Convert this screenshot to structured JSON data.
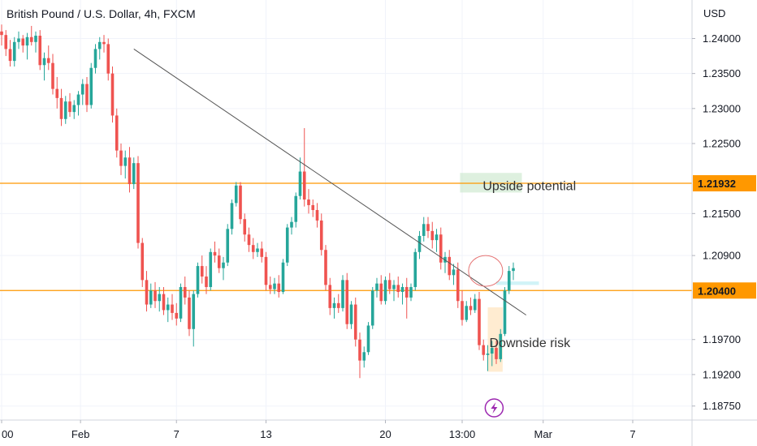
{
  "chart_title": "British Pound / U.S. Dollar, 4h, FXCM",
  "currency_label": "USD",
  "colors": {
    "up": "#26a69a",
    "down": "#ef5350",
    "level": "#ff9800",
    "badge_bg": "#ff9800",
    "grid": "#f0f3fa",
    "trendline": "#555555",
    "upside_box": "#c8e6c9",
    "downside_box": "#ffe0b2",
    "target_box": "#b2ebf2",
    "circle": "#e57373",
    "flash_icon": "#9c27b0"
  },
  "chart_data": {
    "type": "candlestick",
    "title": "British Pound / U.S. Dollar, 4h, FXCM",
    "y_axis_label": "USD",
    "ylim": [
      1.1855,
      1.2455
    ],
    "y_ticks": [
      "1.18750",
      "1.19200",
      "1.19700",
      "1.20400",
      "1.20900",
      "1.21500",
      "1.21932",
      "1.22500",
      "1.23000",
      "1.23500",
      "1.24000"
    ],
    "x_ticks": [
      {
        "label": "00",
        "idx": 0
      },
      {
        "label": "Feb",
        "idx": 18.5
      },
      {
        "label": "7",
        "idx": 41
      },
      {
        "label": "13",
        "idx": 62
      },
      {
        "label": "20",
        "idx": 90
      },
      {
        "label": "13:00",
        "idx": 108
      },
      {
        "label": "Mar",
        "idx": 127
      },
      {
        "label": "7",
        "idx": 148
      }
    ],
    "ohlc": [
      [
        1.241,
        1.242,
        1.239,
        1.2405
      ],
      [
        1.2405,
        1.2412,
        1.2375,
        1.2385
      ],
      [
        1.2385,
        1.2398,
        1.236,
        1.2368
      ],
      [
        1.2368,
        1.2402,
        1.236,
        1.2395
      ],
      [
        1.2395,
        1.241,
        1.2385,
        1.24
      ],
      [
        1.24,
        1.2405,
        1.238,
        1.239
      ],
      [
        1.239,
        1.2408,
        1.237,
        1.2402
      ],
      [
        1.2402,
        1.2418,
        1.239,
        1.2395
      ],
      [
        1.2395,
        1.241,
        1.238,
        1.2404
      ],
      [
        1.2404,
        1.2412,
        1.2355,
        1.2362
      ],
      [
        1.2362,
        1.238,
        1.234,
        1.2372
      ],
      [
        1.2372,
        1.239,
        1.2355,
        1.2365
      ],
      [
        1.2365,
        1.2378,
        1.232,
        1.2328
      ],
      [
        1.2328,
        1.2345,
        1.23,
        1.2315
      ],
      [
        1.2315,
        1.2328,
        1.2275,
        1.2285
      ],
      [
        1.2285,
        1.2318,
        1.2278,
        1.231
      ],
      [
        1.231,
        1.2322,
        1.2288,
        1.2295
      ],
      [
        1.2295,
        1.2312,
        1.2285,
        1.2305
      ],
      [
        1.2305,
        1.2325,
        1.229,
        1.232
      ],
      [
        1.232,
        1.2342,
        1.2305,
        1.2335
      ],
      [
        1.2335,
        1.2345,
        1.2295,
        1.2305
      ],
      [
        1.2305,
        1.2365,
        1.23,
        1.2358
      ],
      [
        1.2358,
        1.2392,
        1.235,
        1.2385
      ],
      [
        1.2385,
        1.2402,
        1.237,
        1.2395
      ],
      [
        1.2395,
        1.2405,
        1.238,
        1.2392
      ],
      [
        1.2392,
        1.24,
        1.234,
        1.235
      ],
      [
        1.235,
        1.236,
        1.228,
        1.229
      ],
      [
        1.229,
        1.23,
        1.223,
        1.224
      ],
      [
        1.224,
        1.225,
        1.2205,
        1.2218
      ],
      [
        1.2218,
        1.224,
        1.22,
        1.223
      ],
      [
        1.223,
        1.2245,
        1.218,
        1.2192
      ],
      [
        1.2192,
        1.223,
        1.2185,
        1.2222
      ],
      [
        1.2222,
        1.2232,
        1.21,
        1.2108
      ],
      [
        1.2108,
        1.2115,
        1.2045,
        1.2055
      ],
      [
        1.2055,
        1.2068,
        1.201,
        1.202
      ],
      [
        1.202,
        1.205,
        1.2015,
        1.204
      ],
      [
        1.204,
        1.2052,
        1.2015,
        1.2025
      ],
      [
        1.2025,
        1.2045,
        1.201,
        1.2035
      ],
      [
        1.2035,
        1.2045,
        1.2005,
        1.2012
      ],
      [
        1.2012,
        1.203,
        1.1995,
        1.202
      ],
      [
        1.202,
        1.2035,
        1.1998,
        1.2008
      ],
      [
        1.2008,
        1.2022,
        1.199,
        1.2
      ],
      [
        1.2,
        1.205,
        1.1995,
        1.2045
      ],
      [
        1.2045,
        1.206,
        1.202,
        1.203
      ],
      [
        1.203,
        1.204,
        1.1975,
        1.1985
      ],
      [
        1.1985,
        1.204,
        1.196,
        1.2035
      ],
      [
        1.2035,
        1.208,
        1.203,
        1.2075
      ],
      [
        1.2075,
        1.209,
        1.205,
        1.206
      ],
      [
        1.206,
        1.2075,
        1.2035,
        1.2045
      ],
      [
        1.2045,
        1.21,
        1.204,
        1.2095
      ],
      [
        1.2095,
        1.211,
        1.208,
        1.209
      ],
      [
        1.209,
        1.21,
        1.2065,
        1.2072
      ],
      [
        1.2072,
        1.2088,
        1.2055,
        1.208
      ],
      [
        1.208,
        1.2135,
        1.2075,
        1.2128
      ],
      [
        1.2128,
        1.217,
        1.212,
        1.2165
      ],
      [
        1.2165,
        1.2195,
        1.216,
        1.219
      ],
      [
        1.219,
        1.2195,
        1.2135,
        1.2142
      ],
      [
        1.2142,
        1.215,
        1.211,
        1.212
      ],
      [
        1.212,
        1.213,
        1.2095,
        1.2105
      ],
      [
        1.2105,
        1.2115,
        1.2085,
        1.2095
      ],
      [
        1.2095,
        1.2108,
        1.2088,
        1.21
      ],
      [
        1.21,
        1.211,
        1.208,
        1.2088
      ],
      [
        1.2088,
        1.2095,
        1.204,
        1.2048
      ],
      [
        1.2048,
        1.206,
        1.2035,
        1.2042
      ],
      [
        1.2042,
        1.2058,
        1.2035,
        1.205
      ],
      [
        1.205,
        1.2062,
        1.203,
        1.2038
      ],
      [
        1.2038,
        1.2085,
        1.2035,
        1.208
      ],
      [
        1.208,
        1.2135,
        1.2075,
        1.213
      ],
      [
        1.213,
        1.2145,
        1.212,
        1.2138
      ],
      [
        1.2138,
        1.218,
        1.213,
        1.2175
      ],
      [
        1.2175,
        1.223,
        1.217,
        1.221
      ],
      [
        1.221,
        1.2272,
        1.216,
        1.217
      ],
      [
        1.217,
        1.2185,
        1.215,
        1.2162
      ],
      [
        1.2162,
        1.217,
        1.2145,
        1.2155
      ],
      [
        1.2155,
        1.2165,
        1.213,
        1.214
      ],
      [
        1.214,
        1.215,
        1.209,
        1.2098
      ],
      [
        1.2098,
        1.2105,
        1.204,
        1.2048
      ],
      [
        1.2048,
        1.2058,
        1.2005,
        1.2015
      ],
      [
        1.2015,
        1.203,
        1.2,
        1.2022
      ],
      [
        1.2022,
        1.2035,
        1.2008,
        1.2015
      ],
      [
        1.2015,
        1.2062,
        1.201,
        1.2055
      ],
      [
        1.2055,
        1.2065,
        1.1985,
        1.1992
      ],
      [
        1.1992,
        1.2025,
        1.1985,
        1.202
      ],
      [
        1.202,
        1.203,
        1.196,
        1.197
      ],
      [
        1.197,
        1.198,
        1.1915,
        1.194
      ],
      [
        1.194,
        1.196,
        1.193,
        1.1952
      ],
      [
        1.1952,
        1.1995,
        1.1948,
        1.199
      ],
      [
        1.199,
        1.2045,
        1.1985,
        1.204
      ],
      [
        1.204,
        1.2058,
        1.203,
        1.205
      ],
      [
        1.205,
        1.2062,
        1.202,
        1.2025
      ],
      [
        1.2025,
        1.206,
        1.202,
        1.2055
      ],
      [
        1.2055,
        1.2065,
        1.2035,
        1.2042
      ],
      [
        1.2042,
        1.2055,
        1.2025,
        1.2048
      ],
      [
        1.2048,
        1.206,
        1.203,
        1.2038
      ],
      [
        1.2038,
        1.205,
        1.202,
        1.2045
      ],
      [
        1.2045,
        1.2058,
        1.2,
        1.203
      ],
      [
        1.203,
        1.205,
        1.2025,
        1.2045
      ],
      [
        1.2045,
        1.21,
        1.204,
        1.2095
      ],
      [
        1.2095,
        1.2125,
        1.2085,
        1.2118
      ],
      [
        1.2118,
        1.2145,
        1.211,
        1.2135
      ],
      [
        1.2135,
        1.2145,
        1.2115,
        1.2125
      ],
      [
        1.2125,
        1.2138,
        1.21,
        1.2112
      ],
      [
        1.2112,
        1.2128,
        1.2095,
        1.212
      ],
      [
        1.212,
        1.213,
        1.207,
        1.208
      ],
      [
        1.208,
        1.2095,
        1.2065,
        1.2088
      ],
      [
        1.2088,
        1.2098,
        1.2055,
        1.2062
      ],
      [
        1.2062,
        1.2078,
        1.2048,
        1.207
      ],
      [
        1.207,
        1.208,
        1.2015,
        1.2025
      ],
      [
        1.2025,
        1.204,
        1.199,
        1.1998
      ],
      [
        1.1998,
        1.2025,
        1.1995,
        1.2018
      ],
      [
        1.2018,
        1.203,
        1.2005,
        1.2012
      ],
      [
        1.2012,
        1.2035,
        1.2008,
        1.2028
      ],
      [
        1.2028,
        1.2038,
        1.1955,
        1.1962
      ],
      [
        1.1962,
        1.197,
        1.194,
        1.1948
      ],
      [
        1.1948,
        1.1962,
        1.1925,
        1.195
      ],
      [
        1.195,
        1.1968,
        1.1932,
        1.1958
      ],
      [
        1.1958,
        1.1968,
        1.1935,
        1.1942
      ],
      [
        1.1942,
        1.1985,
        1.1938,
        1.1978
      ],
      [
        1.1978,
        1.2045,
        1.1975,
        1.204
      ],
      [
        1.204,
        1.2075,
        1.2035,
        1.2068
      ],
      [
        1.2068,
        1.208,
        1.2055,
        1.2072
      ]
    ],
    "annotations": {
      "trendline": {
        "from": [
          31,
          1.2385
        ],
        "to": [
          123,
          1.2005
        ]
      },
      "levels": [
        {
          "price": 1.21932,
          "label": "1.21932"
        },
        {
          "price": 1.204,
          "label": "1.20400"
        }
      ],
      "upside_box": {
        "from_idx": 107.5,
        "to_idx": 122,
        "top": 1.2208,
        "bottom": 1.218,
        "label": "Upside potential"
      },
      "downside_box": {
        "from_idx": 114,
        "to_idx": 117.5,
        "top": 1.2016,
        "bottom": 1.1924,
        "label": "Downside risk"
      },
      "target_box": {
        "from_idx": 116,
        "to_idx": 126,
        "top": 1.2053,
        "bottom": 1.2048
      },
      "circle": {
        "idx": 113.5,
        "price": 1.2068
      }
    }
  }
}
